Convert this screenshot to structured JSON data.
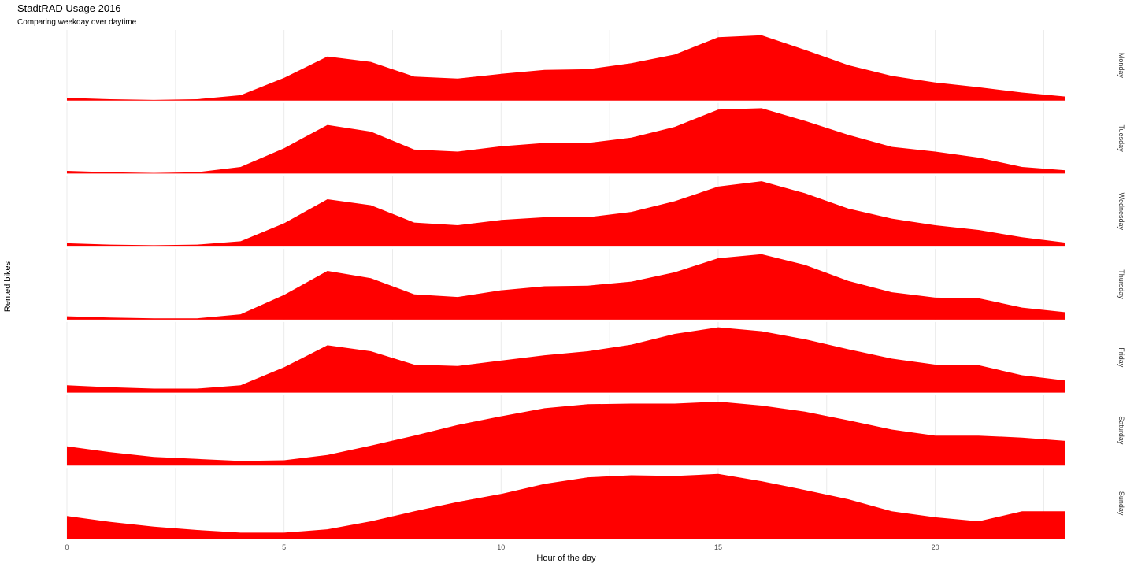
{
  "chart_data": {
    "type": "area",
    "title": "StadtRAD Usage 2016",
    "subtitle": "Comparing weekday over daytime",
    "xlabel": "Hour of the day",
    "ylabel": "Rented bikes",
    "xlim": [
      0,
      23
    ],
    "x_ticks": [
      0,
      5,
      10,
      15,
      20
    ],
    "x": [
      0,
      1,
      2,
      3,
      4,
      5,
      6,
      7,
      8,
      9,
      10,
      11,
      12,
      13,
      14,
      15,
      16,
      17,
      18,
      19,
      20,
      21,
      22,
      23
    ],
    "ylim": [
      0,
      100
    ],
    "grid": true,
    "fill_color": "#ff0000",
    "facets": [
      {
        "label": "Monday",
        "values": [
          4,
          2,
          1,
          2,
          8,
          34,
          66,
          58,
          36,
          33,
          40,
          46,
          47,
          56,
          69,
          95,
          98,
          76,
          53,
          37,
          27,
          20,
          12,
          6
        ]
      },
      {
        "label": "Tuesday",
        "values": [
          4,
          2,
          1,
          2,
          10,
          38,
          73,
          63,
          36,
          33,
          41,
          46,
          46,
          54,
          70,
          96,
          98,
          79,
          58,
          40,
          33,
          24,
          10,
          5
        ]
      },
      {
        "label": "Wednesday",
        "values": [
          5,
          3,
          2,
          3,
          8,
          35,
          71,
          62,
          36,
          32,
          40,
          44,
          44,
          52,
          68,
          90,
          98,
          80,
          57,
          42,
          32,
          25,
          14,
          6
        ]
      },
      {
        "label": "Thursday",
        "values": [
          5,
          3,
          2,
          2,
          8,
          37,
          73,
          62,
          38,
          34,
          44,
          50,
          51,
          57,
          71,
          92,
          98,
          82,
          58,
          41,
          33,
          32,
          18,
          11
        ]
      },
      {
        "label": "Friday",
        "values": [
          11,
          8,
          6,
          6,
          11,
          38,
          71,
          62,
          42,
          40,
          48,
          56,
          62,
          72,
          88,
          98,
          92,
          80,
          65,
          51,
          42,
          41,
          26,
          18
        ]
      },
      {
        "label": "Saturday",
        "values": [
          29,
          20,
          13,
          10,
          7,
          8,
          16,
          30,
          45,
          61,
          74,
          86,
          92,
          93,
          93,
          96,
          90,
          81,
          68,
          54,
          45,
          45,
          42,
          37
        ]
      },
      {
        "label": "Sunday",
        "values": [
          34,
          25,
          18,
          13,
          9,
          9,
          14,
          26,
          41,
          55,
          67,
          82,
          92,
          95,
          94,
          97,
          86,
          73,
          59,
          41,
          32,
          26,
          41,
          41
        ]
      }
    ]
  }
}
